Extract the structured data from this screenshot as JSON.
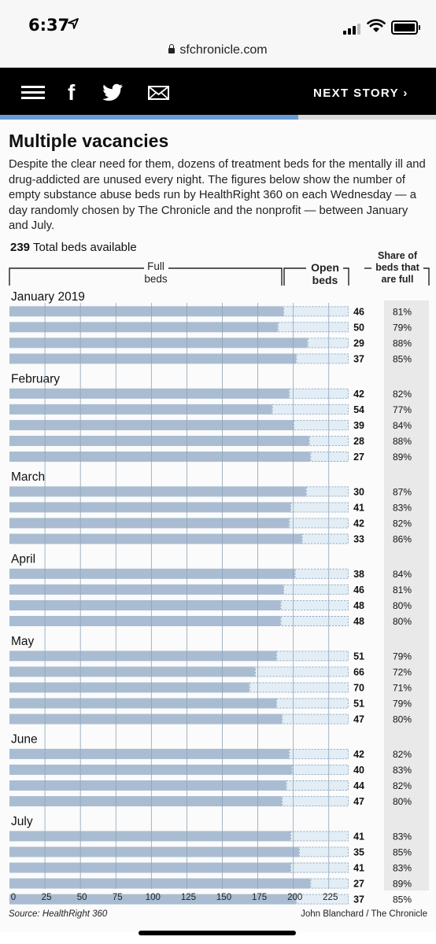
{
  "status_bar": {
    "time": "6:37",
    "location_arrow": "location-arrow-icon",
    "signal": "signal-icon",
    "wifi": "wifi-icon",
    "battery": "battery-icon"
  },
  "browser": {
    "url": "sfchronicle.com"
  },
  "nav": {
    "menu_icon": "hamburger-icon",
    "facebook_icon": "facebook-icon",
    "twitter_icon": "twitter-icon",
    "mail_icon": "mail-icon",
    "next_story": "NEXT STORY",
    "next_chevron": "›"
  },
  "reading_progress": 0.685,
  "colors": {
    "full": "#a9bcd2",
    "open": "#e2edf5",
    "share_col": "#e9e9e9",
    "nav_bg": "#000000",
    "progress_accent": "#6b9bd6"
  },
  "article": {
    "title": "Multiple vacancies",
    "subtitle": "Despite the clear need for them, dozens of treatment beds for the mentally ill and drug-addicted are unused every night. The figures below show the number of empty substance abuse beds run by HealthRight 360 on each Wednesday — a day randomly chosen by The Chronicle and the nonprofit — between January and July.",
    "total_value": "239",
    "total_label": "Total beds available",
    "source": "Source: HealthRight 360",
    "credit": "John Blanchard / The Chronicle"
  },
  "chart_data": {
    "type": "bar",
    "stacked": true,
    "orientation": "horizontal",
    "total_beds": 239,
    "headers": {
      "full_line1": "Full",
      "full_line2": "beds",
      "open_line1": "Open",
      "open_line2": "beds",
      "share_line1": "Share of",
      "share_line2": "beds that",
      "share_line3": "are full"
    },
    "xlim": [
      0,
      239
    ],
    "x_ticks": [
      "0",
      "25",
      "50",
      "75",
      "100",
      "125",
      "150",
      "175",
      "200",
      "225"
    ],
    "groups": [
      {
        "label": "January 2019",
        "open": [
          "46",
          "50",
          "29",
          "37"
        ],
        "share": [
          "81%",
          "79%",
          "88%",
          "85%"
        ]
      },
      {
        "label": "February",
        "open": [
          "42",
          "54",
          "39",
          "28",
          "27"
        ],
        "share": [
          "82%",
          "77%",
          "84%",
          "88%",
          "89%"
        ]
      },
      {
        "label": "March",
        "open": [
          "30",
          "41",
          "42",
          "33"
        ],
        "share": [
          "87%",
          "83%",
          "82%",
          "86%"
        ]
      },
      {
        "label": "April",
        "open": [
          "38",
          "46",
          "48",
          "48"
        ],
        "share": [
          "84%",
          "81%",
          "80%",
          "80%"
        ]
      },
      {
        "label": "May",
        "open": [
          "51",
          "66",
          "70",
          "51",
          "47"
        ],
        "share": [
          "79%",
          "72%",
          "71%",
          "79%",
          "80%"
        ]
      },
      {
        "label": "June",
        "open": [
          "42",
          "40",
          "44",
          "47"
        ],
        "share": [
          "82%",
          "83%",
          "82%",
          "80%"
        ]
      },
      {
        "label": "July",
        "open": [
          "41",
          "35",
          "41",
          "27",
          "37"
        ],
        "share": [
          "83%",
          "85%",
          "83%",
          "89%",
          "85%"
        ]
      }
    ]
  }
}
